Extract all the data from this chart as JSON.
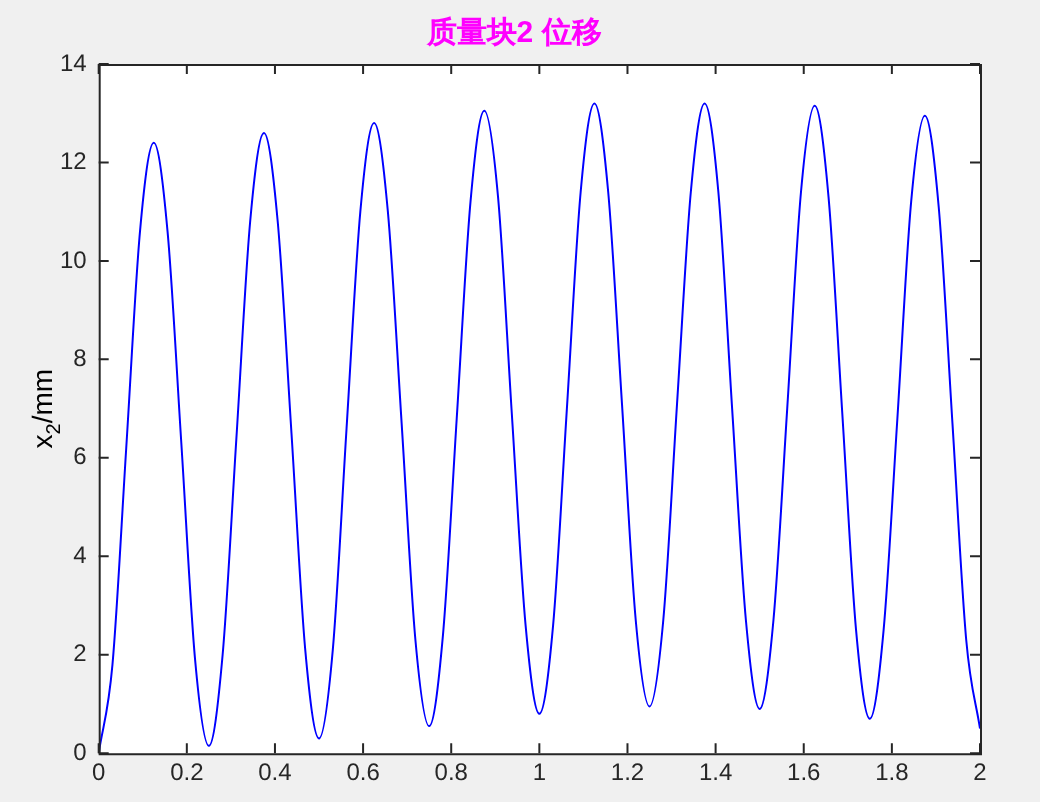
{
  "chart_data": {
    "type": "line",
    "title": "质量块2 位移",
    "ylabel": "x$_{2}$/mm",
    "x": [
      0,
      0.03125,
      0.0625,
      0.09375,
      0.125,
      0.15625,
      0.1875,
      0.21875,
      0.25,
      0.28125,
      0.3125,
      0.34375,
      0.375,
      0.40625,
      0.4375,
      0.46875,
      0.5,
      0.53125,
      0.5625,
      0.59375,
      0.625,
      0.65625,
      0.6875,
      0.71875,
      0.75,
      0.78125,
      0.8125,
      0.84375,
      0.875,
      0.90625,
      0.9375,
      0.96875,
      1,
      1.03125,
      1.0625,
      1.09375,
      1.125,
      1.15625,
      1.1875,
      1.21875,
      1.25,
      1.28125,
      1.3125,
      1.34375,
      1.375,
      1.40625,
      1.4375,
      1.46875,
      1.5,
      1.53125,
      1.5625,
      1.59375,
      1.625,
      1.65625,
      1.6875,
      1.71875,
      1.75,
      1.78125,
      1.8125,
      1.84375,
      1.875,
      1.90625,
      1.9375,
      1.96875,
      2
    ],
    "series": [
      {
        "color": "#0000ff",
        "values": [
          0,
          1.8,
          6.2,
          10.6,
          12.4,
          10.6,
          6.3,
          1.9,
          0.15,
          2,
          6.4,
          10.8,
          12.6,
          10.8,
          6.5,
          2.1,
          0.3,
          2.1,
          6.6,
          11,
          12.8,
          11,
          6.7,
          2.3,
          0.55,
          2.4,
          6.8,
          11.2,
          13.05,
          11.3,
          6.9,
          2.6,
          0.8,
          2.6,
          7,
          11.4,
          13.2,
          11.4,
          7.1,
          2.7,
          0.95,
          2.7,
          7.1,
          11.4,
          13.2,
          11.4,
          7,
          2.7,
          0.9,
          2.7,
          7,
          11.4,
          13.15,
          11.3,
          6.9,
          2.5,
          0.7,
          2.5,
          6.8,
          11.2,
          12.95,
          11.1,
          6.7,
          2.3,
          0.5
        ]
      }
    ],
    "xlim": [
      0,
      2
    ],
    "xticks": [
      0,
      0.2,
      0.4,
      0.6,
      0.8,
      1,
      1.2,
      1.4,
      1.6,
      1.8,
      2
    ],
    "ylim": [
      0,
      14
    ],
    "yticks": [
      0,
      2,
      4,
      6,
      8,
      10,
      12,
      14
    ],
    "grid": false,
    "legend": false,
    "marker": "none",
    "line_style": "solid"
  }
}
